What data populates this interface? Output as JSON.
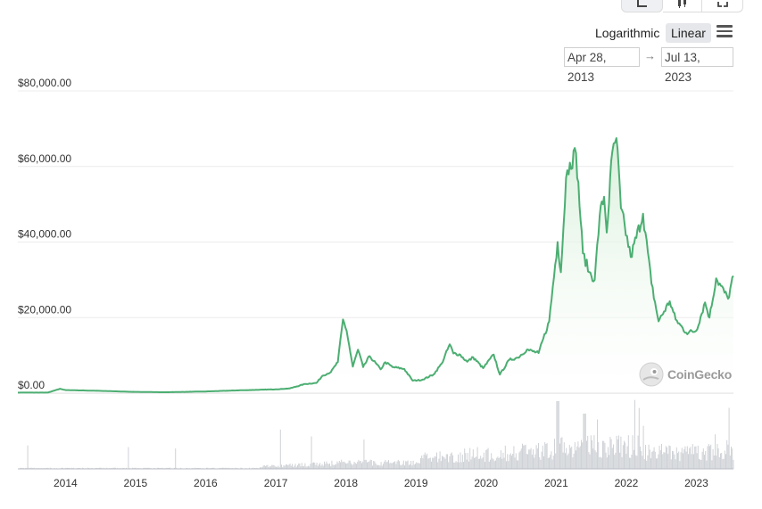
{
  "toolbar": {
    "chart_type_buttons": [
      {
        "icon": "line-chart-icon",
        "active": true
      },
      {
        "icon": "candlestick-icon",
        "active": false
      },
      {
        "icon": "fullscreen-icon",
        "active": false
      }
    ],
    "scale_options": {
      "log_label": "Logarithmic",
      "linear_label": "Linear",
      "selected": "Linear"
    },
    "menu_icon": "hamburger-menu-icon",
    "date_range": {
      "from": "Apr 28, 2013",
      "arrow": "→",
      "to": "Jul 13, 2023"
    }
  },
  "watermark": {
    "text": "CoinGecko",
    "icon": "gecko-logo-icon"
  },
  "colors": {
    "line": "#4cae72",
    "area_top": "#d7efd9",
    "volume": "#cfd2d6",
    "grid": "#ececec"
  },
  "chart_data": {
    "type": "line",
    "y_axis": {
      "ticks": [
        0,
        20000,
        40000,
        60000,
        80000
      ],
      "tick_labels": [
        "$0.00",
        "$20,000.00",
        "$40,000.00",
        "$60,000.00",
        "$80,000.00"
      ],
      "range": [
        0,
        80000
      ]
    },
    "x_axis": {
      "ticks": [
        "2014",
        "2015",
        "2016",
        "2017",
        "2018",
        "2019",
        "2020",
        "2021",
        "2022",
        "2023"
      ],
      "range": [
        "2013-04-28",
        "2023-07-13"
      ]
    },
    "grid": true,
    "legend": "none",
    "series": [
      {
        "values": [
          [
            "2013-04-28",
            135
          ],
          [
            "2013-10-01",
            130
          ],
          [
            "2013-12-04",
            1150
          ],
          [
            "2014-01-01",
            800
          ],
          [
            "2014-06-01",
            640
          ],
          [
            "2015-01-01",
            320
          ],
          [
            "2015-06-01",
            230
          ],
          [
            "2016-01-01",
            430
          ],
          [
            "2016-06-15",
            720
          ],
          [
            "2017-01-01",
            1000
          ],
          [
            "2017-03-15",
            1250
          ],
          [
            "2017-06-01",
            2400
          ],
          [
            "2017-08-01",
            2700
          ],
          [
            "2017-09-01",
            4600
          ],
          [
            "2017-10-15",
            5600
          ],
          [
            "2017-11-20",
            8200
          ],
          [
            "2017-12-17",
            19500
          ],
          [
            "2018-01-05",
            16500
          ],
          [
            "2018-02-06",
            7000
          ],
          [
            "2018-03-05",
            11500
          ],
          [
            "2018-04-01",
            6900
          ],
          [
            "2018-05-05",
            9800
          ],
          [
            "2018-07-01",
            6300
          ],
          [
            "2018-07-25",
            8200
          ],
          [
            "2018-09-01",
            6900
          ],
          [
            "2018-11-01",
            6400
          ],
          [
            "2018-12-15",
            3300
          ],
          [
            "2019-02-01",
            3500
          ],
          [
            "2019-04-02",
            4900
          ],
          [
            "2019-05-15",
            7800
          ],
          [
            "2019-06-26",
            12900
          ],
          [
            "2019-07-15",
            10500
          ],
          [
            "2019-08-15",
            10300
          ],
          [
            "2019-09-25",
            8300
          ],
          [
            "2019-10-26",
            9500
          ],
          [
            "2019-12-17",
            6600
          ],
          [
            "2020-02-10",
            10200
          ],
          [
            "2020-03-13",
            4900
          ],
          [
            "2020-05-01",
            8800
          ],
          [
            "2020-06-15",
            9400
          ],
          [
            "2020-08-01",
            11500
          ],
          [
            "2020-10-01",
            10600
          ],
          [
            "2020-11-25",
            19000
          ],
          [
            "2021-01-08",
            40000
          ],
          [
            "2021-01-25",
            32000
          ],
          [
            "2021-02-21",
            57000
          ],
          [
            "2021-03-13",
            61000
          ],
          [
            "2021-04-14",
            63500
          ],
          [
            "2021-05-20",
            37000
          ],
          [
            "2021-06-22",
            32000
          ],
          [
            "2021-07-20",
            30000
          ],
          [
            "2021-08-15",
            47000
          ],
          [
            "2021-09-07",
            52000
          ],
          [
            "2021-09-21",
            42500
          ],
          [
            "2021-10-20",
            64000
          ],
          [
            "2021-11-10",
            67500
          ],
          [
            "2021-12-04",
            49000
          ],
          [
            "2022-01-24",
            36000
          ],
          [
            "2022-03-29",
            47500
          ],
          [
            "2022-05-12",
            29000
          ],
          [
            "2022-06-18",
            19000
          ],
          [
            "2022-08-15",
            24300
          ],
          [
            "2022-09-15",
            19500
          ],
          [
            "2022-11-09",
            16000
          ],
          [
            "2022-12-31",
            16500
          ],
          [
            "2023-02-15",
            24000
          ],
          [
            "2023-03-10",
            20000
          ],
          [
            "2023-04-14",
            30400
          ],
          [
            "2023-06-15",
            25000
          ],
          [
            "2023-07-13",
            31000
          ]
        ]
      }
    ]
  }
}
